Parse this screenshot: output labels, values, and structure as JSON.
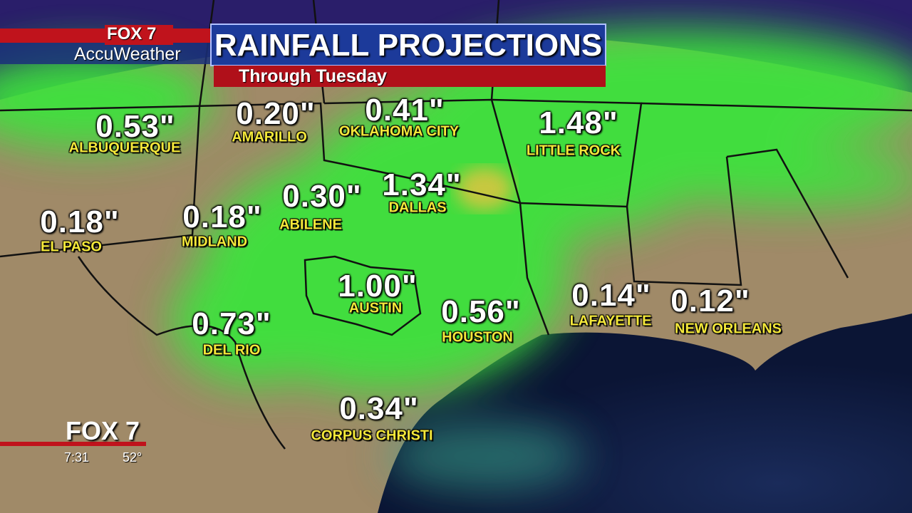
{
  "header": {
    "logo_top": "FOX 7",
    "logo_bottom": "AccuWeather",
    "title": "RAINFALL PROJECTIONS",
    "subtitle": "Through Tuesday"
  },
  "cities": [
    {
      "name": "ALBUQUERQUE",
      "amount": "0.53\""
    },
    {
      "name": "AMARILLO",
      "amount": "0.20\""
    },
    {
      "name": "OKLAHOMA CITY",
      "amount": "0.41\""
    },
    {
      "name": "LITTLE ROCK",
      "amount": "1.48\""
    },
    {
      "name": "DALLAS",
      "amount": "1.34\""
    },
    {
      "name": "ABILENE",
      "amount": "0.30\""
    },
    {
      "name": "EL PASO",
      "amount": "0.18\""
    },
    {
      "name": "MIDLAND",
      "amount": "0.18\""
    },
    {
      "name": "AUSTIN",
      "amount": "1.00\""
    },
    {
      "name": "HOUSTON",
      "amount": "0.56\""
    },
    {
      "name": "DEL RIO",
      "amount": "0.73\""
    },
    {
      "name": "LAFAYETTE",
      "amount": "0.14\""
    },
    {
      "name": "NEW ORLEANS",
      "amount": "0.12\""
    },
    {
      "name": "CORPUS CHRISTI",
      "amount": "0.34\""
    }
  ],
  "station_bug": {
    "logo": "FOX 7",
    "time": "7:31",
    "temperature": "52°"
  }
}
